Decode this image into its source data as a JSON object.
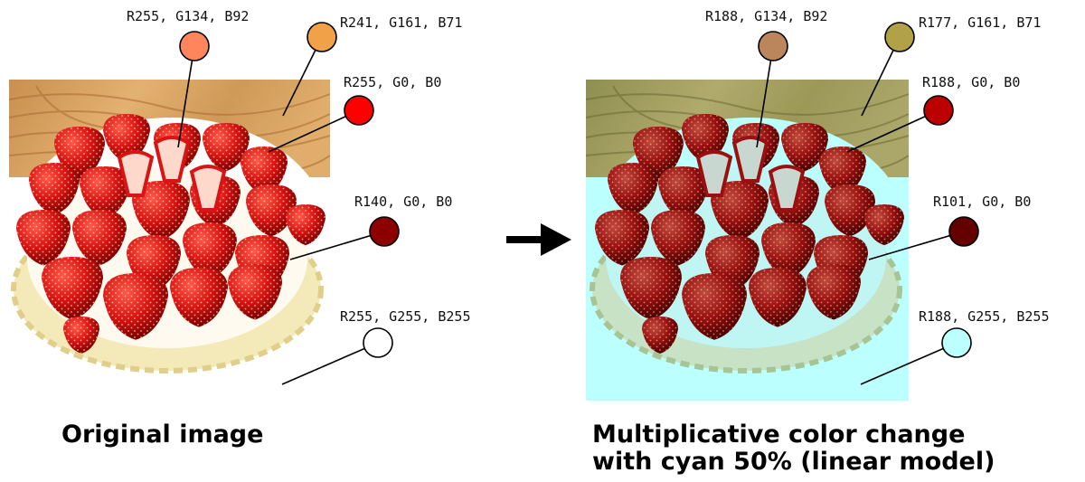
{
  "left_panel": {
    "caption": "Original image",
    "samples": [
      {
        "label": "R255, G134, B92",
        "color": "#ff865c"
      },
      {
        "label": "R241, G161, B71",
        "color": "#f1a147"
      },
      {
        "label": "R255, G0, B0",
        "color": "#ff0000"
      },
      {
        "label": "R140, G0, B0",
        "color": "#8c0000"
      },
      {
        "label": "R255, G255, B255",
        "color": "#ffffff"
      }
    ]
  },
  "right_panel": {
    "caption_line1": "Multiplicative color change",
    "caption_line2": "with cyan 50% (linear model)",
    "samples": [
      {
        "label": "R188, G134, B92",
        "color": "#bc865c"
      },
      {
        "label": "R177, G161, B71",
        "color": "#b1a147"
      },
      {
        "label": "R188, G0, B0",
        "color": "#bc0000"
      },
      {
        "label": "R101, G0, B0",
        "color": "#650000"
      },
      {
        "label": "R188, G255, B255",
        "color": "#bcffff"
      }
    ]
  },
  "colors": {
    "arrow": "#000000",
    "cyan_background": "#bcffff",
    "wood_original": "#d9a663",
    "wood_filtered": "#a7a462",
    "strawberry_original": "#d81414",
    "strawberry_filtered": "#9a1010",
    "crust_original": "#f4e9b8",
    "crust_filtered": "#c8e2c6"
  }
}
